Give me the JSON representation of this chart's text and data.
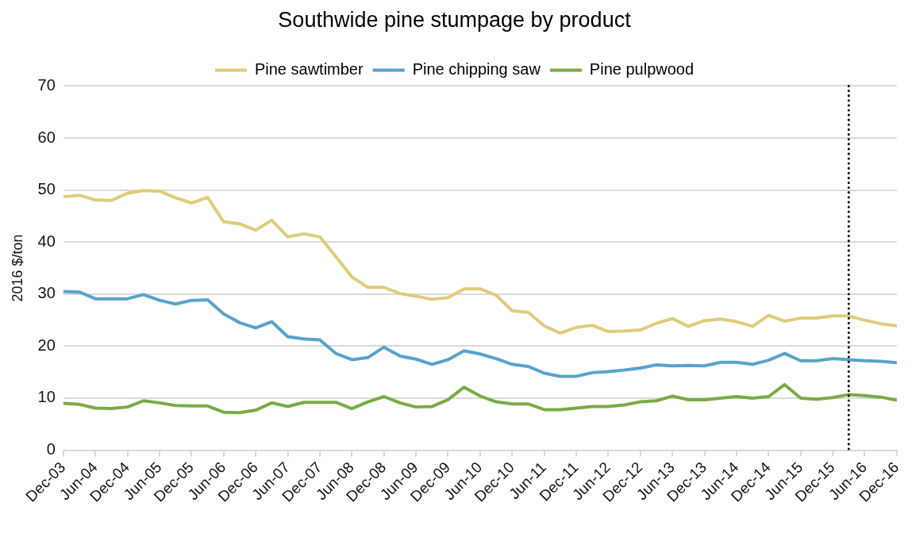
{
  "chart_data": {
    "type": "line",
    "title": "Southwide pine stumpage by product",
    "ylabel": "2016 $/ton",
    "x": [
      "2003-12",
      "2004-03",
      "2004-06",
      "2004-09",
      "2004-12",
      "2005-03",
      "2005-06",
      "2005-09",
      "2005-12",
      "2006-03",
      "2006-06",
      "2006-09",
      "2006-12",
      "2007-03",
      "2007-06",
      "2007-09",
      "2007-12",
      "2008-03",
      "2008-06",
      "2008-09",
      "2008-12",
      "2009-03",
      "2009-06",
      "2009-09",
      "2009-12",
      "2010-03",
      "2010-06",
      "2010-09",
      "2010-12",
      "2011-03",
      "2011-06",
      "2011-09",
      "2011-12",
      "2012-03",
      "2012-06",
      "2012-09",
      "2012-12",
      "2013-03",
      "2013-06",
      "2013-09",
      "2013-12",
      "2014-03",
      "2014-06",
      "2014-09",
      "2014-12",
      "2015-03",
      "2015-06",
      "2015-09",
      "2015-12",
      "2016-03",
      "2016-06",
      "2016-09",
      "2016-12"
    ],
    "series": [
      {
        "name": "Pine sawtimber",
        "color": "#dfcb7a",
        "values": [
          48.7,
          49.0,
          48.1,
          48.0,
          49.4,
          49.9,
          49.8,
          48.5,
          47.5,
          48.6,
          43.9,
          43.5,
          42.3,
          44.2,
          41.0,
          41.6,
          41.0,
          37.2,
          33.3,
          31.3,
          31.3,
          30.1,
          29.6,
          29.0,
          29.3,
          31.0,
          31.0,
          29.8,
          26.8,
          26.5,
          23.9,
          22.5,
          23.6,
          24.0,
          22.8,
          22.9,
          23.1,
          24.4,
          25.3,
          23.8,
          24.9,
          25.2,
          24.7,
          23.8,
          25.9,
          24.8,
          25.4,
          25.4,
          25.8,
          25.8,
          25.0,
          24.3,
          23.9
        ]
      },
      {
        "name": "Pine chipping saw",
        "color": "#58a3cc",
        "values": [
          30.5,
          30.4,
          29.1,
          29.1,
          29.1,
          29.9,
          28.8,
          28.1,
          28.8,
          28.9,
          26.2,
          24.5,
          23.5,
          24.7,
          21.8,
          21.4,
          21.2,
          18.6,
          17.4,
          17.8,
          19.8,
          18.1,
          17.5,
          16.5,
          17.4,
          19.1,
          18.5,
          17.6,
          16.5,
          16.1,
          14.8,
          14.2,
          14.2,
          14.9,
          15.1,
          15.4,
          15.8,
          16.4,
          16.2,
          16.3,
          16.2,
          16.9,
          16.9,
          16.5,
          17.3,
          18.6,
          17.2,
          17.2,
          17.6,
          17.4,
          17.2,
          17.1,
          16.8
        ]
      },
      {
        "name": "Pine pulpwood",
        "color": "#7aab45",
        "values": [
          9.0,
          8.8,
          8.1,
          8.0,
          8.3,
          9.5,
          9.1,
          8.6,
          8.5,
          8.5,
          7.3,
          7.2,
          7.7,
          9.1,
          8.4,
          9.2,
          9.2,
          9.2,
          8.0,
          9.3,
          10.3,
          9.1,
          8.3,
          8.4,
          9.7,
          12.1,
          10.4,
          9.3,
          8.9,
          8.9,
          7.8,
          7.8,
          8.1,
          8.4,
          8.4,
          8.7,
          9.3,
          9.5,
          10.4,
          9.7,
          9.7,
          10.0,
          10.3,
          10.0,
          10.3,
          12.6,
          10.0,
          9.8,
          10.1,
          10.7,
          10.5,
          10.2,
          9.6
        ]
      }
    ],
    "xlim": [
      "2003-12",
      "2016-12"
    ],
    "xticks": [
      {
        "value": "2003-12",
        "label": "Dec-03"
      },
      {
        "value": "2004-06",
        "label": "Jun-04"
      },
      {
        "value": "2004-12",
        "label": "Dec-04"
      },
      {
        "value": "2005-06",
        "label": "Jun-05"
      },
      {
        "value": "2005-12",
        "label": "Dec-05"
      },
      {
        "value": "2006-06",
        "label": "Jun-06"
      },
      {
        "value": "2006-12",
        "label": "Dec-06"
      },
      {
        "value": "2007-06",
        "label": "Jun-07"
      },
      {
        "value": "2007-12",
        "label": "Dec-07"
      },
      {
        "value": "2008-06",
        "label": "Jun-08"
      },
      {
        "value": "2008-12",
        "label": "Dec-08"
      },
      {
        "value": "2009-06",
        "label": "Jun-09"
      },
      {
        "value": "2009-12",
        "label": "Dec-09"
      },
      {
        "value": "2010-06",
        "label": "Jun-10"
      },
      {
        "value": "2010-12",
        "label": "Dec-10"
      },
      {
        "value": "2011-06",
        "label": "Jun-11"
      },
      {
        "value": "2011-12",
        "label": "Dec-11"
      },
      {
        "value": "2012-06",
        "label": "Jun-12"
      },
      {
        "value": "2012-12",
        "label": "Dec-12"
      },
      {
        "value": "2013-06",
        "label": "Jun-13"
      },
      {
        "value": "2013-12",
        "label": "Dec-13"
      },
      {
        "value": "2014-06",
        "label": "Jun-14"
      },
      {
        "value": "2014-12",
        "label": "Dec-14"
      },
      {
        "value": "2015-06",
        "label": "Jun-15"
      },
      {
        "value": "2015-12",
        "label": "Dec-15"
      },
      {
        "value": "2016-06",
        "label": "Jun-16"
      },
      {
        "value": "2016-12",
        "label": "Dec-16"
      }
    ],
    "ylim": [
      0,
      70
    ],
    "yticks": [
      0,
      10,
      20,
      30,
      40,
      50,
      60,
      70
    ],
    "ref_lines": [
      {
        "axis": "x",
        "value": "2016-03",
        "color": "#000000",
        "line_style": "dotted"
      }
    ],
    "grid": "y",
    "legend": "top",
    "marker": "none",
    "line_style": "solid"
  }
}
